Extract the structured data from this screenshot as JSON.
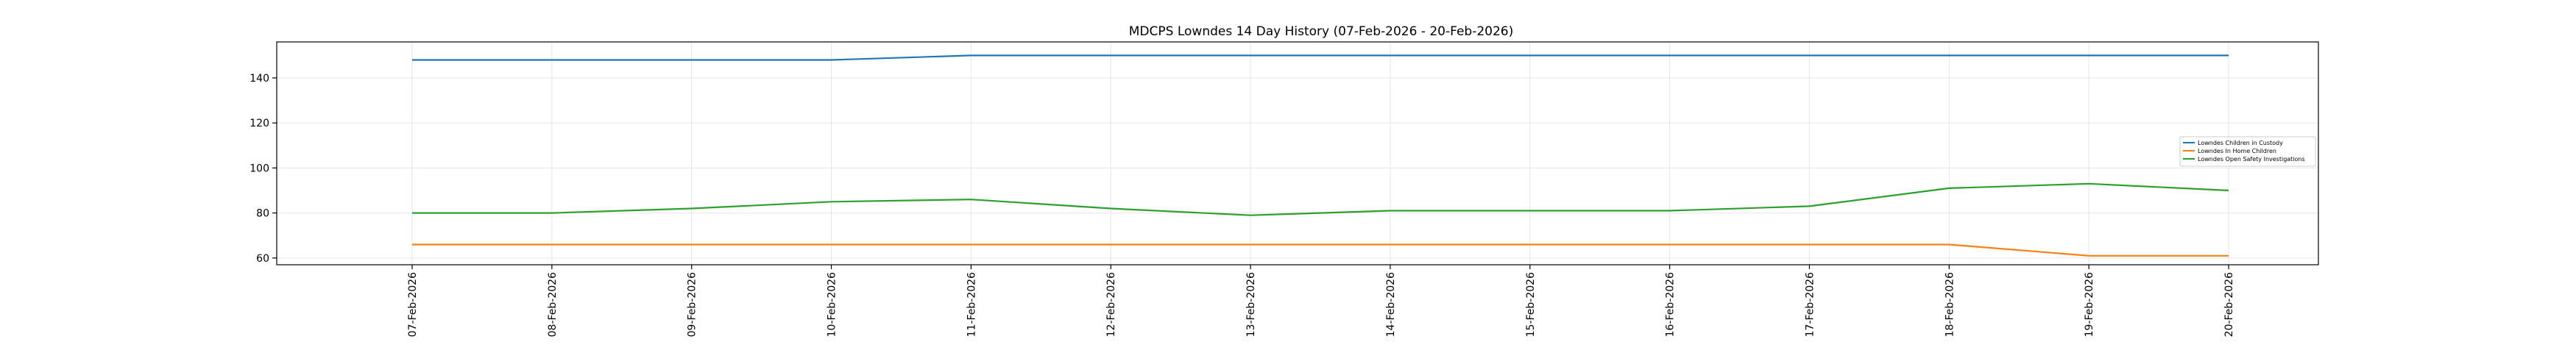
{
  "chart_data": {
    "type": "line",
    "title": "MDCPS Lowndes 14 Day History (07-Feb-2026 - 20-Feb-2026)",
    "xlabel": "",
    "ylabel": "",
    "categories": [
      "07-Feb-2026",
      "08-Feb-2026",
      "09-Feb-2026",
      "10-Feb-2026",
      "11-Feb-2026",
      "12-Feb-2026",
      "13-Feb-2026",
      "14-Feb-2026",
      "15-Feb-2026",
      "16-Feb-2026",
      "17-Feb-2026",
      "18-Feb-2026",
      "19-Feb-2026",
      "20-Feb-2026"
    ],
    "yticks": [
      60,
      80,
      100,
      120,
      140
    ],
    "ylim": [
      57,
      156
    ],
    "grid": true,
    "legend_placement": "center-right",
    "series": [
      {
        "name": "Lowndes Children in Custody",
        "color": "#1f77b4",
        "values": [
          148,
          148,
          148,
          148,
          150,
          150,
          150,
          150,
          150,
          150,
          150,
          150,
          150,
          150
        ]
      },
      {
        "name": "Lowndes In Home Children",
        "color": "#ff7f0e",
        "values": [
          66,
          66,
          66,
          66,
          66,
          66,
          66,
          66,
          66,
          66,
          66,
          66,
          61,
          61
        ]
      },
      {
        "name": "Lowndes Open Safety Investigations",
        "color": "#2ca02c",
        "values": [
          80,
          80,
          82,
          85,
          86,
          82,
          79,
          81,
          81,
          81,
          83,
          91,
          93,
          90
        ]
      }
    ]
  }
}
